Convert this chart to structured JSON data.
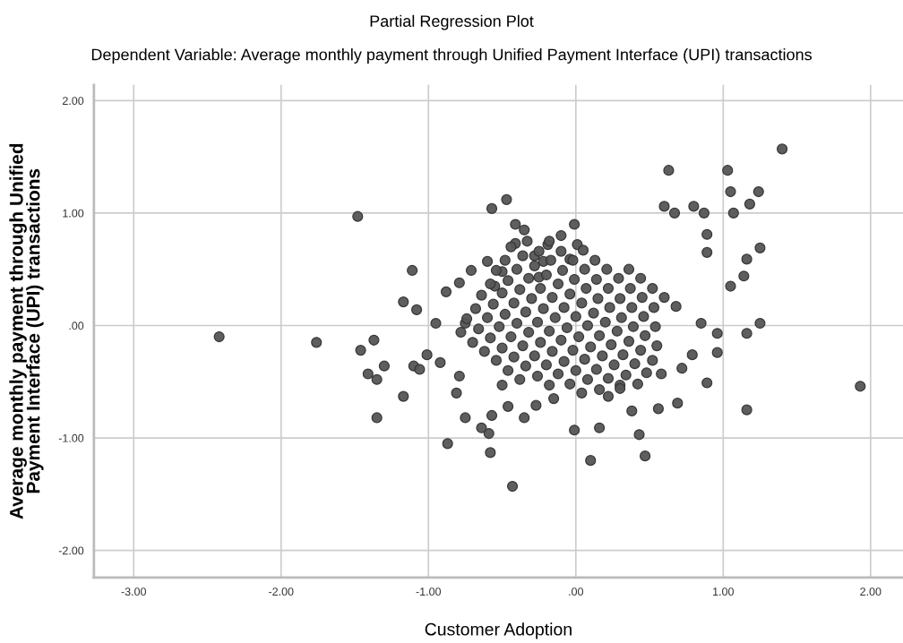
{
  "chart_data": {
    "type": "scatter",
    "title": "Partial Regression Plot",
    "subtitle": "Dependent Variable: Average monthly payment through Unified Payment Interface (UPI) transactions",
    "xlabel": "Customer Adoption",
    "ylabel": "Average monthly payment through Unified\nPayment Interface (UPI) transactions",
    "xlim": [
      -3.27,
      2.22
    ],
    "ylim": [
      -2.24,
      2.14
    ],
    "xticks": [
      {
        "value": -3,
        "label": "-3.00"
      },
      {
        "value": -2,
        "label": "-2.00"
      },
      {
        "value": -1,
        "label": "-1.00"
      },
      {
        "value": 0,
        "label": ".00"
      },
      {
        "value": 1,
        "label": "1.00"
      },
      {
        "value": 2,
        "label": "2.00"
      }
    ],
    "yticks": [
      {
        "value": -2,
        "label": "-2.00"
      },
      {
        "value": -1,
        "label": "-1.00"
      },
      {
        "value": 0,
        "label": ".00"
      },
      {
        "value": 1,
        "label": "1.00"
      },
      {
        "value": 2,
        "label": "2.00"
      }
    ],
    "grid": true,
    "marker": "circle",
    "series": [
      {
        "color": "#555555",
        "x": [
          -2.42,
          -1.76,
          -1.48,
          1.4,
          1.93,
          -0.43,
          0.1,
          -0.87,
          -0.58,
          1.03,
          0.63,
          1.24,
          -0.47,
          -0.57,
          1.05,
          1.18,
          0.6,
          0.8,
          0.67,
          0.87,
          1.07,
          0.89,
          0.89,
          1.25,
          1.16,
          1.14,
          1.05,
          1.25,
          1.16,
          0.96,
          0.85,
          1.16,
          0.89,
          0.72,
          0.58,
          0.69,
          0.47,
          0.43,
          0.38,
          0.56,
          0.16,
          0.96,
          0.79,
          0.22,
          0.3,
          -0.01,
          -1.35,
          -1.17,
          -1.41,
          -1.35,
          -1.3,
          -1.1,
          -1.06,
          -1.01,
          -1.46,
          -1.37,
          -0.59,
          -0.64,
          -0.75,
          -0.81,
          -0.35,
          -0.27,
          -0.46,
          -0.57,
          -0.5,
          -0.15,
          -0.79,
          -0.92,
          -0.41,
          -0.35,
          -0.01,
          -0.1,
          -0.41,
          -0.19,
          0.01,
          -0.28,
          -0.22,
          -0.04,
          -1.11,
          -0.6,
          -0.71,
          -0.79,
          -0.88,
          -1.17,
          -1.08,
          -0.95,
          -0.75,
          -0.55,
          -0.5,
          -0.25,
          0.05,
          0.13,
          0.21,
          0.29,
          0.37,
          0.45,
          0.53,
          -0.18,
          -0.1,
          -0.02,
          0.06,
          0.14,
          0.22,
          0.3,
          0.38,
          0.46,
          0.54,
          -0.33,
          -0.25,
          -0.17,
          -0.09,
          -0.01,
          0.07,
          0.15,
          0.23,
          0.31,
          0.39,
          0.47,
          0.55,
          -0.44,
          -0.36,
          -0.28,
          -0.2,
          -0.12,
          -0.04,
          0.04,
          0.12,
          0.2,
          0.28,
          0.36,
          0.44,
          0.52,
          -0.48,
          -0.4,
          -0.32,
          -0.24,
          -0.16,
          -0.08,
          0.0,
          0.08,
          0.16,
          0.24,
          0.32,
          0.4,
          0.48,
          -0.54,
          -0.46,
          -0.38,
          -0.3,
          -0.22,
          -0.14,
          -0.06,
          0.02,
          0.1,
          0.18,
          0.26,
          0.34,
          0.42,
          -0.58,
          -0.5,
          -0.42,
          -0.34,
          -0.26,
          -0.18,
          -0.1,
          -0.02,
          0.06,
          0.14,
          0.22,
          0.3,
          -0.64,
          -0.56,
          -0.48,
          -0.4,
          -0.32,
          -0.24,
          -0.16,
          -0.08,
          0.0,
          0.08,
          0.16,
          -0.68,
          -0.6,
          -0.52,
          -0.44,
          -0.36,
          -0.28,
          -0.2,
          -0.12,
          -0.04,
          0.04,
          -0.74,
          -0.66,
          -0.58,
          -0.5,
          -0.42,
          -0.34,
          -0.26,
          -0.18,
          -0.78,
          -0.7,
          -0.62,
          -0.54,
          -0.46,
          -0.38,
          0.36,
          0.44,
          0.52,
          0.6,
          0.68
        ],
        "values": [
          -0.1,
          -0.15,
          0.97,
          1.57,
          -0.54,
          -1.43,
          -1.2,
          -1.05,
          -1.13,
          1.38,
          1.38,
          1.19,
          1.12,
          1.04,
          1.19,
          1.08,
          1.06,
          1.06,
          1.0,
          1.0,
          1.0,
          0.81,
          0.65,
          0.69,
          0.59,
          0.44,
          0.35,
          0.02,
          -0.07,
          -0.07,
          0.02,
          -0.75,
          -0.51,
          -0.38,
          -0.43,
          -0.69,
          -1.16,
          -0.97,
          -0.76,
          -0.74,
          -0.91,
          -0.24,
          -0.26,
          -0.63,
          -0.53,
          -0.93,
          -0.82,
          -0.63,
          -0.43,
          -0.48,
          -0.36,
          -0.36,
          -0.39,
          -0.26,
          -0.22,
          -0.13,
          -0.96,
          -0.91,
          -0.82,
          -0.6,
          -0.82,
          -0.71,
          -0.72,
          -0.8,
          -0.53,
          -0.65,
          -0.45,
          -0.33,
          0.9,
          0.85,
          0.9,
          0.8,
          0.73,
          0.72,
          0.72,
          0.62,
          0.57,
          0.59,
          0.49,
          0.57,
          0.49,
          0.38,
          0.3,
          0.21,
          0.14,
          0.02,
          0.02,
          0.35,
          0.48,
          0.43,
          0.67,
          0.58,
          0.5,
          0.42,
          0.33,
          0.25,
          0.16,
          0.75,
          0.66,
          0.58,
          0.5,
          0.41,
          0.33,
          0.24,
          0.16,
          0.08,
          -0.01,
          0.75,
          0.66,
          0.58,
          0.49,
          0.41,
          0.33,
          0.24,
          0.16,
          0.07,
          -0.01,
          -0.09,
          -0.18,
          0.7,
          0.62,
          0.53,
          0.45,
          0.37,
          0.28,
          0.2,
          0.11,
          0.03,
          -0.05,
          -0.14,
          -0.22,
          -0.31,
          0.58,
          0.5,
          0.42,
          0.33,
          0.25,
          0.16,
          0.08,
          0.0,
          -0.09,
          -0.17,
          -0.26,
          -0.34,
          -0.42,
          0.49,
          0.4,
          0.32,
          0.24,
          0.15,
          0.07,
          -0.02,
          -0.1,
          -0.19,
          -0.27,
          -0.35,
          -0.44,
          -0.52,
          0.37,
          0.29,
          0.2,
          0.12,
          0.03,
          -0.05,
          -0.13,
          -0.22,
          -0.3,
          -0.39,
          -0.47,
          -0.56,
          0.27,
          0.19,
          0.1,
          0.02,
          -0.06,
          -0.15,
          -0.23,
          -0.32,
          -0.4,
          -0.48,
          -0.57,
          0.15,
          0.07,
          -0.01,
          -0.1,
          -0.18,
          -0.27,
          -0.35,
          -0.43,
          -0.52,
          -0.6,
          0.06,
          -0.03,
          -0.11,
          -0.2,
          -0.28,
          -0.36,
          -0.45,
          -0.53,
          -0.06,
          -0.15,
          -0.23,
          -0.31,
          -0.4,
          -0.48,
          0.5,
          0.42,
          0.33,
          0.25,
          0.17
        ]
      }
    ]
  }
}
